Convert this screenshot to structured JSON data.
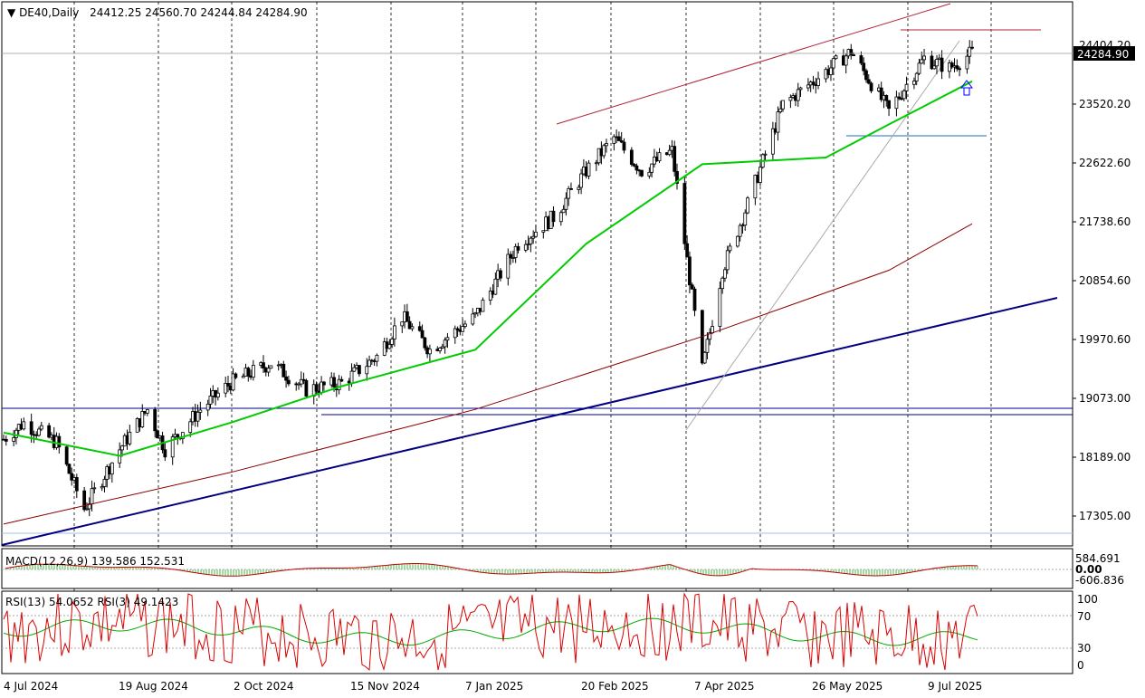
{
  "chart_data": {
    "type": "candlestick",
    "symbol_label": "DE40,Daily",
    "ohlc_label": "24412.25 24560.70 24244.84 24284.90",
    "current_price": 24284.9,
    "current_price_label": "24284.90",
    "top_tick_label": "24404.20",
    "y_ticks": [
      "24404.20",
      "23520.20",
      "22622.60",
      "21738.60",
      "20854.60",
      "19970.60",
      "19073.00",
      "18189.00",
      "17305.00"
    ],
    "x_labels": [
      "4 Jul 2024",
      "19 Aug 2024",
      "2 Oct 2024",
      "15 Nov 2024",
      "7 Jan 2025",
      "20 Feb 2025",
      "7 Apr 2025",
      "26 May 2025",
      "9 Jul 2025"
    ],
    "price_path": [
      [
        "2024-07-04",
        18450
      ],
      [
        "2024-07-12",
        18700
      ],
      [
        "2024-07-25",
        18400
      ],
      [
        "2024-08-05",
        17400
      ],
      [
        "2024-08-19",
        18300
      ],
      [
        "2024-08-30",
        18900
      ],
      [
        "2024-09-06",
        18300
      ],
      [
        "2024-09-20",
        18900
      ],
      [
        "2024-10-02",
        19300
      ],
      [
        "2024-10-18",
        19600
      ],
      [
        "2024-11-01",
        19200
      ],
      [
        "2024-11-15",
        19300
      ],
      [
        "2024-11-29",
        19700
      ],
      [
        "2024-12-09",
        20300
      ],
      [
        "2024-12-20",
        19800
      ],
      [
        "2025-01-07",
        20300
      ],
      [
        "2025-01-24",
        21400
      ],
      [
        "2025-02-07",
        21800
      ],
      [
        "2025-02-20",
        22500
      ],
      [
        "2025-03-03",
        23000
      ],
      [
        "2025-03-14",
        22500
      ],
      [
        "2025-03-26",
        22800
      ],
      [
        "2025-04-07",
        19500
      ],
      [
        "2025-04-15",
        21000
      ],
      [
        "2025-04-25",
        22000
      ],
      [
        "2025-05-09",
        23500
      ],
      [
        "2025-05-26",
        24000
      ],
      [
        "2025-06-05",
        24300
      ],
      [
        "2025-06-20",
        23400
      ],
      [
        "2025-07-04",
        24200
      ],
      [
        "2025-07-14",
        24050
      ],
      [
        "2025-07-23",
        24285
      ]
    ],
    "ma_fast": [
      [
        "2024-07-04",
        18550
      ],
      [
        "2024-08-19",
        18200
      ],
      [
        "2024-10-02",
        18700
      ],
      [
        "2024-11-15",
        19250
      ],
      [
        "2025-01-07",
        19800
      ],
      [
        "2025-02-20",
        21400
      ],
      [
        "2025-04-07",
        22600
      ],
      [
        "2025-05-26",
        22700
      ],
      [
        "2025-06-20",
        23200
      ],
      [
        "2025-07-23",
        23850
      ]
    ],
    "ma_slow": [
      [
        "2024-07-04",
        17170
      ],
      [
        "2024-10-02",
        17950
      ],
      [
        "2025-01-07",
        18900
      ],
      [
        "2025-04-07",
        20000
      ],
      [
        "2025-06-20",
        21000
      ],
      [
        "2025-07-23",
        21700
      ]
    ],
    "macd": {
      "label": "MACD(12,26,9) 139.586 152.531",
      "ticks": [
        "584.691",
        "0.00",
        "-606.836"
      ]
    },
    "rsi": {
      "label": "RSI(13) 54.0652  RSI(3) 49.1423",
      "ticks": [
        "100",
        "70",
        "30",
        "0"
      ]
    },
    "colors": {
      "ma_fast": "#00cc00",
      "ma_slow": "#8b0000",
      "trendline": "#000080",
      "channel": "#b22234",
      "horizontal": "#00008b",
      "support": "#1e6fbf",
      "arrow": "#0000ff"
    }
  }
}
